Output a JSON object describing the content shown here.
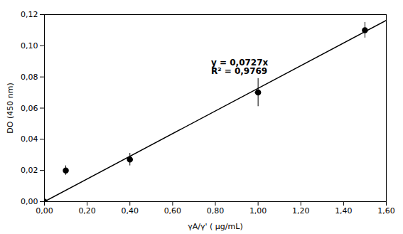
{
  "chart_data": {
    "type": "scatter",
    "xlabel": "γA/γ' ( μg/mL)",
    "ylabel": "DO (450 nm)",
    "series": [
      {
        "type": "scatter",
        "marker": "circle",
        "color": "#000000",
        "x": [
          0.0,
          0.1,
          0.4,
          1.0,
          1.5
        ],
        "values": [
          0.0,
          0.02,
          0.027,
          0.07,
          0.11
        ],
        "x_err": [
          0.0,
          0.003,
          0.005,
          0.015,
          0.01
        ],
        "y_err": [
          0.0,
          0.003,
          0.004,
          0.009,
          0.005
        ]
      },
      {
        "type": "line",
        "color": "#000000",
        "x": [
          0.0,
          1.6
        ],
        "values": [
          0.0,
          0.11632
        ]
      }
    ],
    "annotations": [
      {
        "text": "y = 0,0727x\nR² = 0,9769",
        "x": 0.78,
        "y": 0.082
      }
    ],
    "xlim": [
      0,
      1.6
    ],
    "ylim": [
      0,
      0.12
    ],
    "xticks": [
      {
        "value": 0.0,
        "label": "0,00"
      },
      {
        "value": 0.2,
        "label": "0,20"
      },
      {
        "value": 0.4,
        "label": "0,40"
      },
      {
        "value": 0.6,
        "label": "0,60"
      },
      {
        "value": 0.8,
        "label": "0,80"
      },
      {
        "value": 1.0,
        "label": "1,00"
      },
      {
        "value": 1.2,
        "label": "1,20"
      },
      {
        "value": 1.4,
        "label": "1,40"
      },
      {
        "value": 1.6,
        "label": "1,60"
      }
    ],
    "yticks": [
      {
        "value": 0.0,
        "label": "0,00"
      },
      {
        "value": 0.02,
        "label": "0,02"
      },
      {
        "value": 0.04,
        "label": "0,04"
      },
      {
        "value": 0.06,
        "label": "0,06"
      },
      {
        "value": 0.08,
        "label": "0,08"
      },
      {
        "value": 0.1,
        "label": "0,10"
      },
      {
        "value": 0.12,
        "label": "0,12"
      }
    ],
    "grid": false
  }
}
